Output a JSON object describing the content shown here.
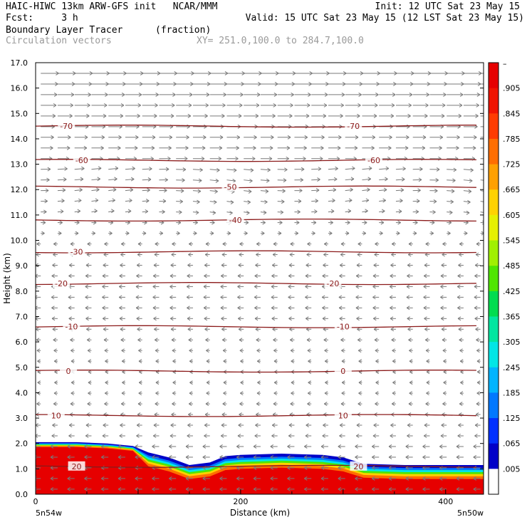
{
  "header": {
    "line1_left": "HAIC-HIWC 13km ARW-GFS init   NCAR/MMM",
    "line1_right": "Init: 12 UTC Sat 23 May 15",
    "line2_left": "Fcst:     3 h",
    "line2_right": "Valid: 15 UTC Sat 23 May 15 (12 LST Sat 23 May 15)",
    "field_name": "Boundary Layer Tracer",
    "field_units": "(fraction)",
    "vector_label": "Circulation vectors",
    "cross_section": "XY= 251.0,100.0 to 284.7,100.0"
  },
  "chart_data": {
    "type": "heatmap",
    "ylabel": "Height (km)",
    "xlabel": "Distance (km)",
    "ylim": [
      0,
      17
    ],
    "xlim": [
      0,
      437
    ],
    "y_ticks": [
      "0.0",
      "1.0",
      "2.0",
      "3.0",
      "4.0",
      "5.0",
      "6.0",
      "7.0",
      "8.0",
      "9.0",
      "10.0",
      "11.0",
      "12.0",
      "13.0",
      "14.0",
      "15.0",
      "16.0",
      "17.0"
    ],
    "x_ticks": [
      {
        "value": 0,
        "label": "0"
      },
      {
        "value": 200,
        "label": "200"
      },
      {
        "value": 400,
        "label": "400"
      }
    ],
    "x_endpoints": {
      "left": "5n54w",
      "right": "5n50w"
    },
    "colorbar": {
      "labels": [
        ".005",
        ".065",
        ".125",
        ".185",
        ".245",
        ".305",
        ".365",
        ".425",
        ".485",
        ".545",
        ".605",
        ".665",
        ".725",
        ".785",
        ".845",
        ".905"
      ],
      "top_label": "–",
      "colors": [
        "#ffffff",
        "#0000c8",
        "#0030ff",
        "#0078ff",
        "#00b4ff",
        "#00e6e6",
        "#00e6a0",
        "#00dc50",
        "#50e600",
        "#a0f000",
        "#e6f000",
        "#ffd200",
        "#ffa000",
        "#ff6e00",
        "#ff3c00",
        "#f01400",
        "#e60000"
      ]
    },
    "isotherms": [
      {
        "label": "-70",
        "height": 14.5,
        "label_positions": [
          30,
          310
        ]
      },
      {
        "label": "-60",
        "height": 13.15,
        "label_positions": [
          45,
          330
        ]
      },
      {
        "label": "-50",
        "height": 12.1,
        "label_positions": [
          190
        ]
      },
      {
        "label": "-40",
        "height": 10.8,
        "label_positions": [
          195
        ]
      },
      {
        "label": "-30",
        "height": 9.55,
        "label_positions": [
          40
        ]
      },
      {
        "label": "-20",
        "height": 8.3,
        "label_positions": [
          25,
          290
        ]
      },
      {
        "label": "-10",
        "height": 6.6,
        "label_positions": [
          35,
          300
        ]
      },
      {
        "label": "0",
        "height": 4.85,
        "label_positions": [
          32,
          300
        ]
      },
      {
        "label": "10",
        "height": 3.1,
        "label_positions": [
          20,
          300
        ]
      },
      {
        "label": "20",
        "height": 1.1,
        "label_positions": [
          40,
          315
        ]
      }
    ]
  }
}
